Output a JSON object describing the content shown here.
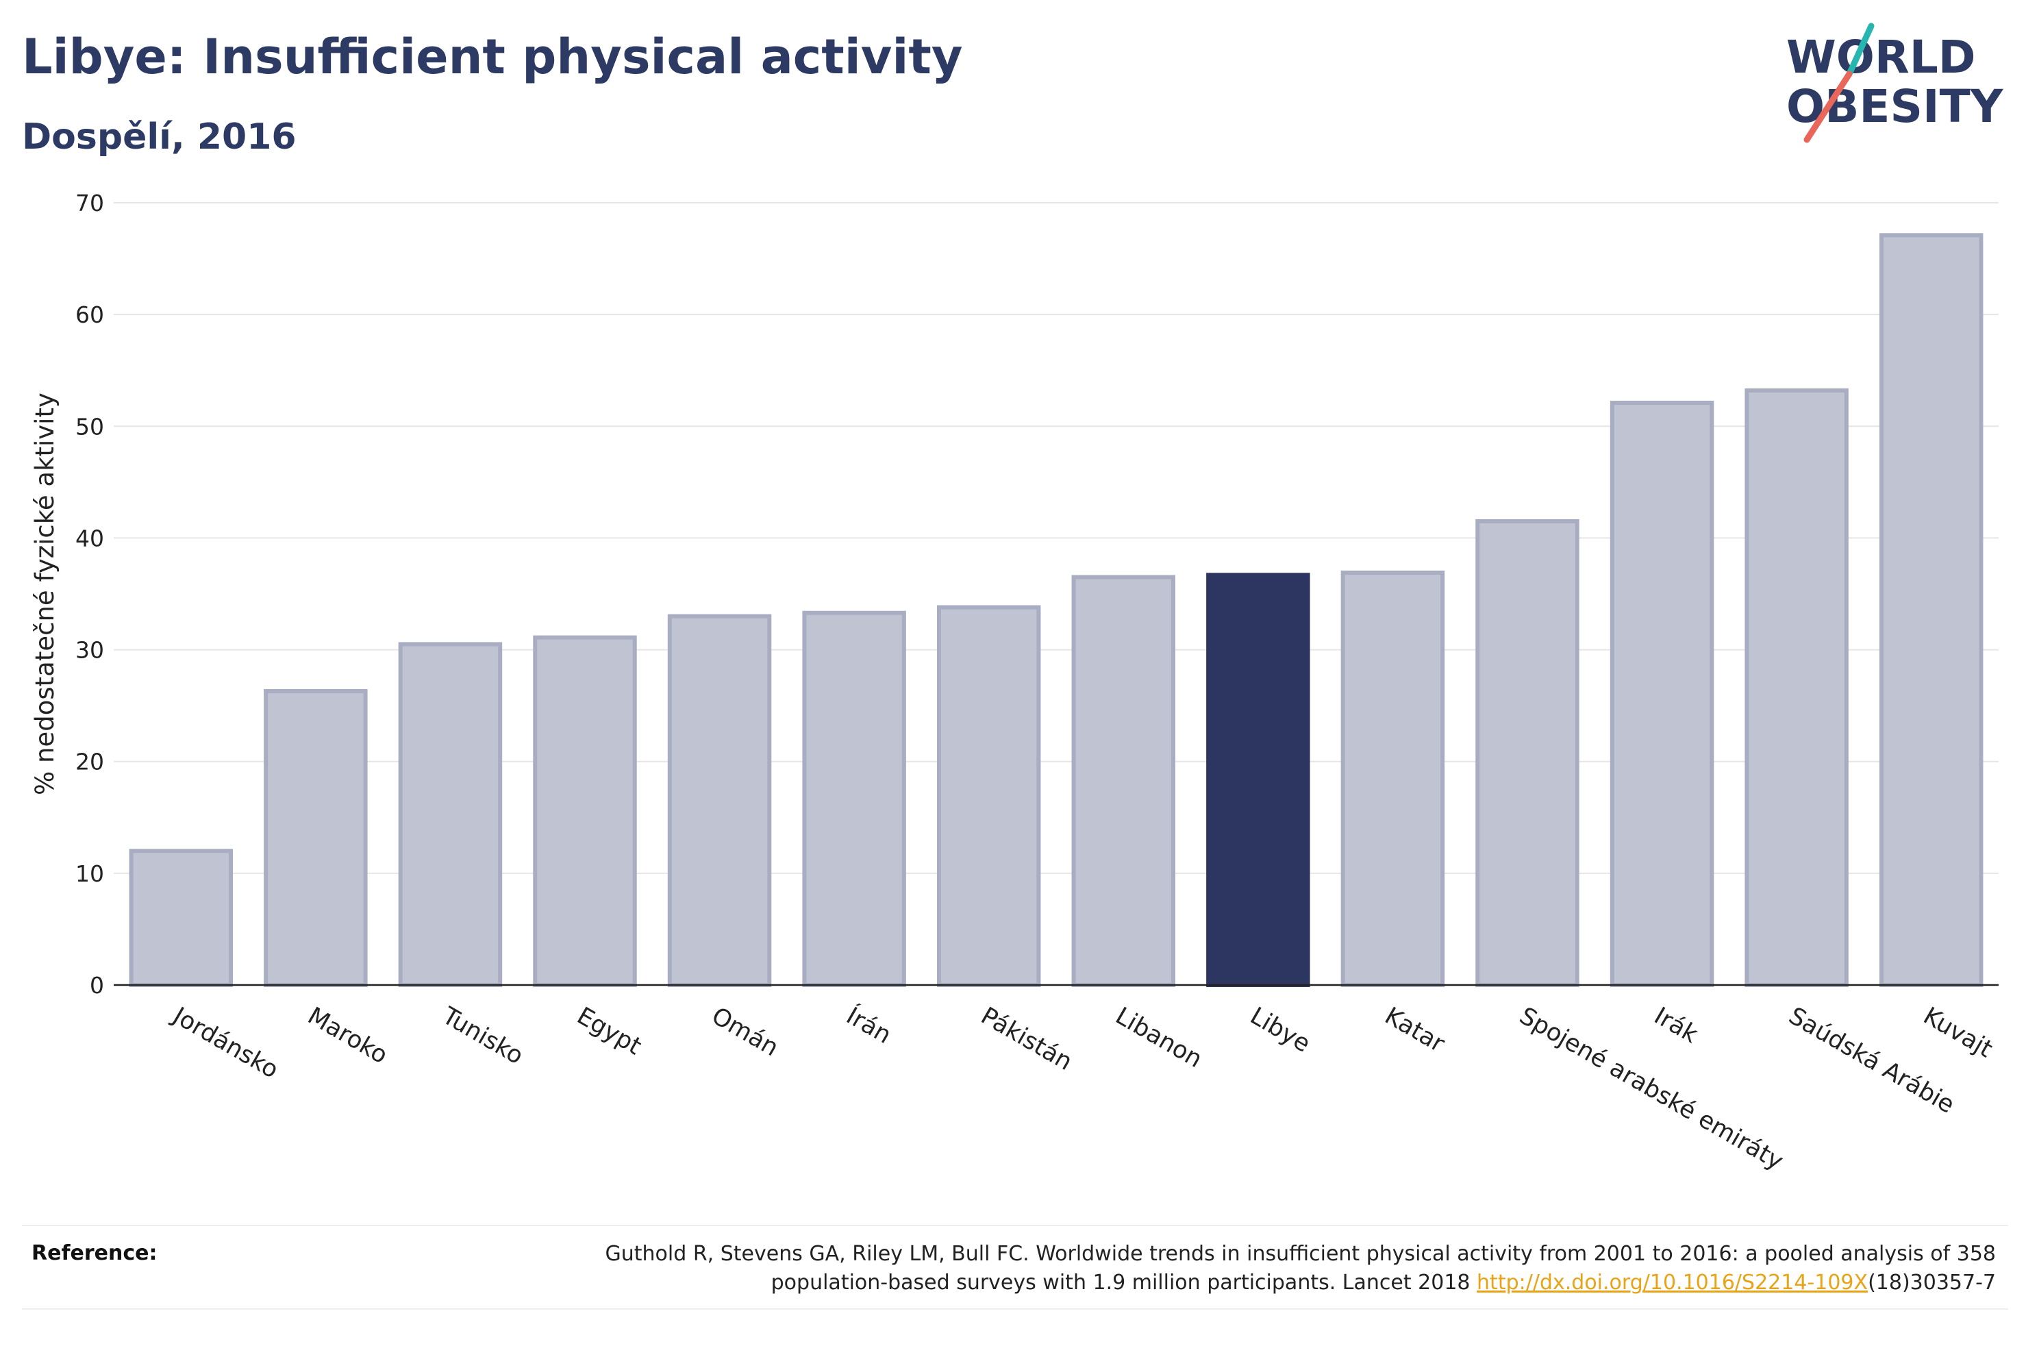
{
  "header": {
    "title": "Libye: Insufficient physical activity",
    "subtitle": "Dospělí, 2016"
  },
  "logo": {
    "line1": "WORLD",
    "line2": "OBESITY",
    "text_color": "#2c3a64",
    "accent_colors": [
      "#27b5b0",
      "#e8675a"
    ]
  },
  "chart_data": {
    "type": "bar",
    "title": "Libye: Insufficient physical activity",
    "subtitle": "Dospělí, 2016",
    "xlabel": "",
    "ylabel": "% nedostatečné fyzické aktivity",
    "ylim": [
      0,
      70
    ],
    "yticks": [
      0,
      10,
      20,
      30,
      40,
      50,
      60,
      70
    ],
    "grid": true,
    "highlight": "Libye",
    "colors": {
      "default": "#c0c3d1",
      "default_outline": "#a9adc2",
      "highlight": "#2c3660"
    },
    "categories": [
      "Jordánsko",
      "Maroko",
      "Tunisko",
      "Egypt",
      "Omán",
      "Írán",
      "Pákistán",
      "Libanon",
      "Libye",
      "Katar",
      "Spojené arabské emiráty",
      "Irák",
      "Saúdská Arábie",
      "Kuvajt"
    ],
    "values": [
      12.0,
      26.3,
      30.5,
      31.1,
      33.0,
      33.3,
      33.8,
      36.5,
      36.7,
      36.9,
      41.5,
      52.1,
      53.2,
      67.1
    ]
  },
  "reference": {
    "heading": "Reference:",
    "line1": "Guthold R, Stevens GA, Riley LM, Bull FC. Worldwide trends in insufficient physical activity from 2001 to 2016: a pooled analysis of 358",
    "line2_before": "population-based surveys with 1.9 million participants. Lancet 2018 ",
    "link_text": "http://dx.doi.org/10.1016/S2214-109X",
    "line2_after": "(18)30357-7"
  }
}
